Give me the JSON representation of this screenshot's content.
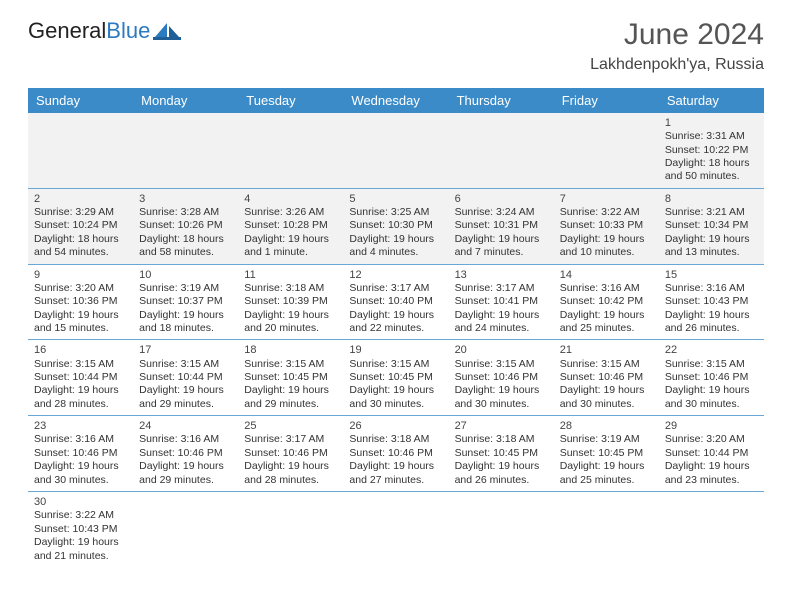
{
  "logo": {
    "text1": "General",
    "text2": "Blue"
  },
  "title": "June 2024",
  "location": "Lakhdenpokh'ya, Russia",
  "colors": {
    "header_bg": "#3b8bc9",
    "header_text": "#ffffff",
    "row_divider": "#6aa7d4",
    "empty_cell_bg": "#f2f2f2",
    "logo_blue": "#2c7abf"
  },
  "dayHeaders": [
    "Sunday",
    "Monday",
    "Tuesday",
    "Wednesday",
    "Thursday",
    "Friday",
    "Saturday"
  ],
  "weeks": [
    [
      null,
      null,
      null,
      null,
      null,
      null,
      {
        "n": "1",
        "sunrise": "Sunrise: 3:31 AM",
        "sunset": "Sunset: 10:22 PM",
        "day1": "Daylight: 18 hours",
        "day2": "and 50 minutes."
      }
    ],
    [
      {
        "n": "2",
        "sunrise": "Sunrise: 3:29 AM",
        "sunset": "Sunset: 10:24 PM",
        "day1": "Daylight: 18 hours",
        "day2": "and 54 minutes."
      },
      {
        "n": "3",
        "sunrise": "Sunrise: 3:28 AM",
        "sunset": "Sunset: 10:26 PM",
        "day1": "Daylight: 18 hours",
        "day2": "and 58 minutes."
      },
      {
        "n": "4",
        "sunrise": "Sunrise: 3:26 AM",
        "sunset": "Sunset: 10:28 PM",
        "day1": "Daylight: 19 hours",
        "day2": "and 1 minute."
      },
      {
        "n": "5",
        "sunrise": "Sunrise: 3:25 AM",
        "sunset": "Sunset: 10:30 PM",
        "day1": "Daylight: 19 hours",
        "day2": "and 4 minutes."
      },
      {
        "n": "6",
        "sunrise": "Sunrise: 3:24 AM",
        "sunset": "Sunset: 10:31 PM",
        "day1": "Daylight: 19 hours",
        "day2": "and 7 minutes."
      },
      {
        "n": "7",
        "sunrise": "Sunrise: 3:22 AM",
        "sunset": "Sunset: 10:33 PM",
        "day1": "Daylight: 19 hours",
        "day2": "and 10 minutes."
      },
      {
        "n": "8",
        "sunrise": "Sunrise: 3:21 AM",
        "sunset": "Sunset: 10:34 PM",
        "day1": "Daylight: 19 hours",
        "day2": "and 13 minutes."
      }
    ],
    [
      {
        "n": "9",
        "sunrise": "Sunrise: 3:20 AM",
        "sunset": "Sunset: 10:36 PM",
        "day1": "Daylight: 19 hours",
        "day2": "and 15 minutes."
      },
      {
        "n": "10",
        "sunrise": "Sunrise: 3:19 AM",
        "sunset": "Sunset: 10:37 PM",
        "day1": "Daylight: 19 hours",
        "day2": "and 18 minutes."
      },
      {
        "n": "11",
        "sunrise": "Sunrise: 3:18 AM",
        "sunset": "Sunset: 10:39 PM",
        "day1": "Daylight: 19 hours",
        "day2": "and 20 minutes."
      },
      {
        "n": "12",
        "sunrise": "Sunrise: 3:17 AM",
        "sunset": "Sunset: 10:40 PM",
        "day1": "Daylight: 19 hours",
        "day2": "and 22 minutes."
      },
      {
        "n": "13",
        "sunrise": "Sunrise: 3:17 AM",
        "sunset": "Sunset: 10:41 PM",
        "day1": "Daylight: 19 hours",
        "day2": "and 24 minutes."
      },
      {
        "n": "14",
        "sunrise": "Sunrise: 3:16 AM",
        "sunset": "Sunset: 10:42 PM",
        "day1": "Daylight: 19 hours",
        "day2": "and 25 minutes."
      },
      {
        "n": "15",
        "sunrise": "Sunrise: 3:16 AM",
        "sunset": "Sunset: 10:43 PM",
        "day1": "Daylight: 19 hours",
        "day2": "and 26 minutes."
      }
    ],
    [
      {
        "n": "16",
        "sunrise": "Sunrise: 3:15 AM",
        "sunset": "Sunset: 10:44 PM",
        "day1": "Daylight: 19 hours",
        "day2": "and 28 minutes."
      },
      {
        "n": "17",
        "sunrise": "Sunrise: 3:15 AM",
        "sunset": "Sunset: 10:44 PM",
        "day1": "Daylight: 19 hours",
        "day2": "and 29 minutes."
      },
      {
        "n": "18",
        "sunrise": "Sunrise: 3:15 AM",
        "sunset": "Sunset: 10:45 PM",
        "day1": "Daylight: 19 hours",
        "day2": "and 29 minutes."
      },
      {
        "n": "19",
        "sunrise": "Sunrise: 3:15 AM",
        "sunset": "Sunset: 10:45 PM",
        "day1": "Daylight: 19 hours",
        "day2": "and 30 minutes."
      },
      {
        "n": "20",
        "sunrise": "Sunrise: 3:15 AM",
        "sunset": "Sunset: 10:46 PM",
        "day1": "Daylight: 19 hours",
        "day2": "and 30 minutes."
      },
      {
        "n": "21",
        "sunrise": "Sunrise: 3:15 AM",
        "sunset": "Sunset: 10:46 PM",
        "day1": "Daylight: 19 hours",
        "day2": "and 30 minutes."
      },
      {
        "n": "22",
        "sunrise": "Sunrise: 3:15 AM",
        "sunset": "Sunset: 10:46 PM",
        "day1": "Daylight: 19 hours",
        "day2": "and 30 minutes."
      }
    ],
    [
      {
        "n": "23",
        "sunrise": "Sunrise: 3:16 AM",
        "sunset": "Sunset: 10:46 PM",
        "day1": "Daylight: 19 hours",
        "day2": "and 30 minutes."
      },
      {
        "n": "24",
        "sunrise": "Sunrise: 3:16 AM",
        "sunset": "Sunset: 10:46 PM",
        "day1": "Daylight: 19 hours",
        "day2": "and 29 minutes."
      },
      {
        "n": "25",
        "sunrise": "Sunrise: 3:17 AM",
        "sunset": "Sunset: 10:46 PM",
        "day1": "Daylight: 19 hours",
        "day2": "and 28 minutes."
      },
      {
        "n": "26",
        "sunrise": "Sunrise: 3:18 AM",
        "sunset": "Sunset: 10:46 PM",
        "day1": "Daylight: 19 hours",
        "day2": "and 27 minutes."
      },
      {
        "n": "27",
        "sunrise": "Sunrise: 3:18 AM",
        "sunset": "Sunset: 10:45 PM",
        "day1": "Daylight: 19 hours",
        "day2": "and 26 minutes."
      },
      {
        "n": "28",
        "sunrise": "Sunrise: 3:19 AM",
        "sunset": "Sunset: 10:45 PM",
        "day1": "Daylight: 19 hours",
        "day2": "and 25 minutes."
      },
      {
        "n": "29",
        "sunrise": "Sunrise: 3:20 AM",
        "sunset": "Sunset: 10:44 PM",
        "day1": "Daylight: 19 hours",
        "day2": "and 23 minutes."
      }
    ],
    [
      {
        "n": "30",
        "sunrise": "Sunrise: 3:22 AM",
        "sunset": "Sunset: 10:43 PM",
        "day1": "Daylight: 19 hours",
        "day2": "and 21 minutes."
      },
      null,
      null,
      null,
      null,
      null,
      null
    ]
  ]
}
